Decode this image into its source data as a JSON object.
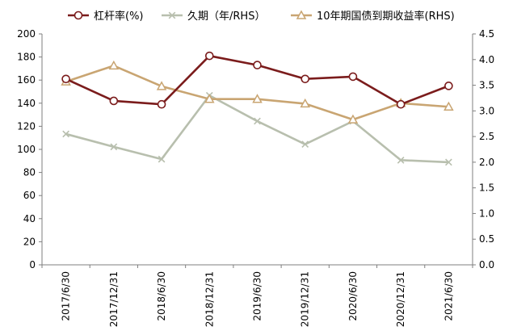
{
  "chart_data": {
    "type": "line",
    "categories": [
      "2017/6/30",
      "2017/12/31",
      "2018/6/30",
      "2018/12/31",
      "2019/6/30",
      "2019/12/31",
      "2020/6/30",
      "2020/12/31",
      "2021/6/30"
    ],
    "y_left": {
      "min": 0,
      "max": 200,
      "step": 20,
      "ticks": [
        "0",
        "20",
        "40",
        "60",
        "80",
        "100",
        "120",
        "140",
        "160",
        "180",
        "200"
      ]
    },
    "y_right": {
      "min": 0,
      "max": 4.5,
      "step": 0.5,
      "ticks": [
        "0.0",
        "0.5",
        "1.0",
        "1.5",
        "2.0",
        "2.5",
        "3.0",
        "3.5",
        "4.0",
        "4.5"
      ]
    },
    "legend_position": "top",
    "series": [
      {
        "name": "杠杆率(%)",
        "axis": "left",
        "color": "#7b1c1c",
        "marker": "circle",
        "values": [
          161,
          142,
          139,
          181,
          173,
          161,
          163,
          139,
          155
        ]
      },
      {
        "name": "久期（年/RHS）",
        "axis": "right",
        "color": "#b8bfae",
        "marker": "x",
        "values": [
          2.55,
          2.3,
          2.06,
          3.3,
          2.8,
          2.35,
          2.8,
          2.04,
          2.0
        ]
      },
      {
        "name": "10年期国债到期收益率(RHS)",
        "axis": "right",
        "color": "#c9a572",
        "marker": "triangle",
        "values": [
          3.57,
          3.88,
          3.48,
          3.23,
          3.23,
          3.14,
          2.83,
          3.15,
          3.08
        ]
      }
    ]
  }
}
